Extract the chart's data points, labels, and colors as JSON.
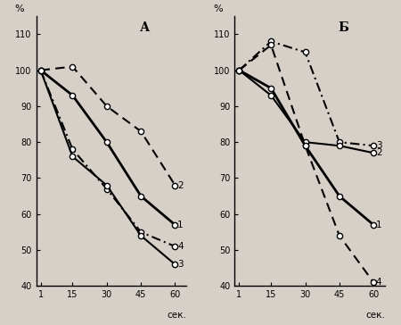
{
  "x": [
    1,
    15,
    30,
    45,
    60
  ],
  "panel_A": {
    "label": "А",
    "lines": {
      "1": {
        "y": [
          100,
          93,
          80,
          65,
          57
        ],
        "style": "solid_thick",
        "label": "1"
      },
      "2": {
        "y": [
          100,
          101,
          90,
          83,
          68
        ],
        "style": "dashed",
        "label": "2"
      },
      "3": {
        "y": [
          100,
          76,
          68,
          54,
          46
        ],
        "style": "solid_thin",
        "label": "3"
      },
      "4": {
        "y": [
          100,
          78,
          67,
          55,
          51
        ],
        "style": "dashdot",
        "label": "4"
      }
    },
    "line_order": [
      "2",
      "4",
      "1",
      "3"
    ]
  },
  "panel_B": {
    "label": "Б",
    "lines": {
      "1": {
        "y": [
          100,
          95,
          79,
          65,
          57
        ],
        "style": "solid_thick",
        "label": "1"
      },
      "2": {
        "y": [
          100,
          93,
          80,
          79,
          77
        ],
        "style": "solid_thin",
        "label": "2"
      },
      "3": {
        "y": [
          100,
          108,
          105,
          80,
          79
        ],
        "style": "dashdot",
        "label": "3"
      },
      "4": {
        "y": [
          100,
          107,
          79,
          54,
          41
        ],
        "style": "dashed",
        "label": "4"
      }
    },
    "line_order": [
      "3",
      "4",
      "2",
      "1"
    ]
  },
  "ylim": [
    40,
    115
  ],
  "yticks": [
    40,
    50,
    60,
    70,
    80,
    90,
    100,
    110
  ],
  "xticks": [
    1,
    15,
    30,
    45,
    60
  ],
  "xlabel": "сек.",
  "ylabel": "%",
  "bg_color": "#d6d0c8",
  "color": "black",
  "marker": "o",
  "markersize": 4.5,
  "markerfacecolor": "white",
  "markeredgewidth": 1.0,
  "lw_thick": 2.0,
  "lw_thin": 1.5,
  "lw_dashed": 1.5,
  "lw_dashdot": 1.5
}
